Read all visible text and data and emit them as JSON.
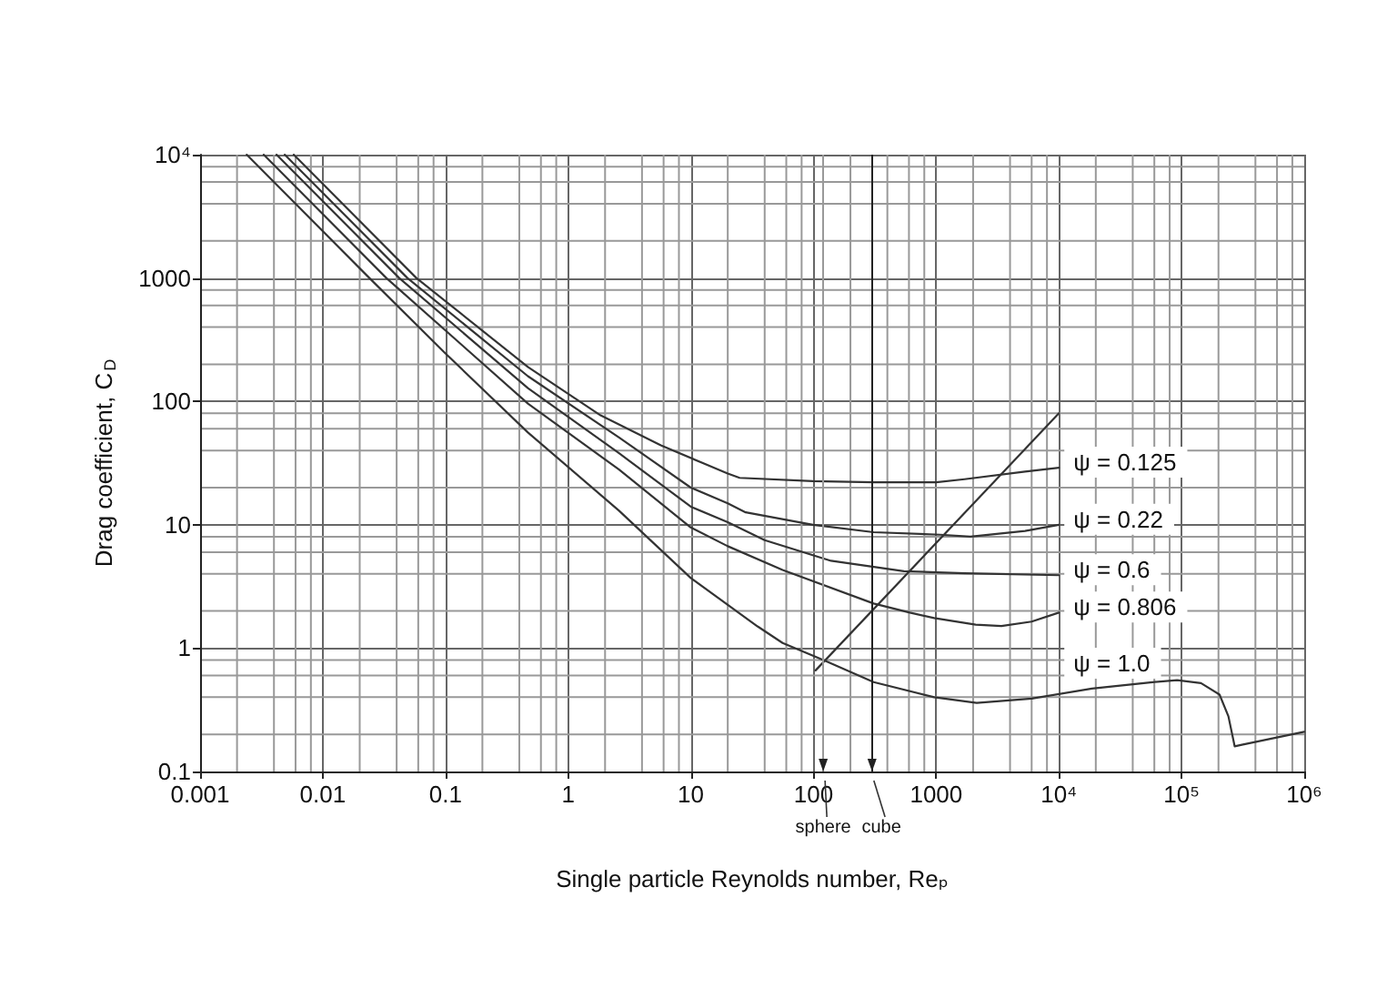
{
  "chart_data": {
    "type": "line",
    "xlabel": "Single particle Reynolds number, Reₚ",
    "ylabel": "Drag coefficient, C$_{D}$",
    "log": "xy",
    "grid": true,
    "xlim": [
      0.001,
      1000000
    ],
    "ylim": [
      0.1,
      10000
    ],
    "xticks": [
      0.001,
      {
        "value": 0.002,
        "label": null
      },
      {
        "value": 0.004,
        "label": null
      },
      {
        "value": 0.006,
        "label": null
      },
      {
        "value": 0.008,
        "label": null
      },
      0.01,
      {
        "value": 0.02,
        "label": null
      },
      {
        "value": 0.04,
        "label": null
      },
      {
        "value": 0.06,
        "label": null
      },
      {
        "value": 0.08,
        "label": null
      },
      0.1,
      {
        "value": 0.2,
        "label": null
      },
      {
        "value": 0.4,
        "label": null
      },
      {
        "value": 0.6,
        "label": null
      },
      {
        "value": 0.8,
        "label": null
      },
      1,
      {
        "value": 2,
        "label": null
      },
      {
        "value": 4,
        "label": null
      },
      {
        "value": 6,
        "label": null
      },
      {
        "value": 8,
        "label": null
      },
      10,
      {
        "value": 20,
        "label": null
      },
      {
        "value": 40,
        "label": null
      },
      {
        "value": 60,
        "label": null
      },
      {
        "value": 80,
        "label": null
      },
      100,
      {
        "value": 200,
        "label": null
      },
      {
        "value": 400,
        "label": null
      },
      {
        "value": 600,
        "label": null
      },
      {
        "value": 800,
        "label": null
      },
      1000,
      {
        "value": 2000,
        "label": null
      },
      {
        "value": 4000,
        "label": null
      },
      {
        "value": 6000,
        "label": null
      },
      {
        "value": 8000,
        "label": null
      },
      {
        "value": 10000,
        "label": "10⁴"
      },
      {
        "value": 20000,
        "label": null
      },
      {
        "value": 40000,
        "label": null
      },
      {
        "value": 60000,
        "label": null
      },
      {
        "value": 80000,
        "label": null
      },
      {
        "value": 100000,
        "label": "10⁵"
      },
      {
        "value": 200000,
        "label": null
      },
      {
        "value": 400000,
        "label": null
      },
      {
        "value": 600000,
        "label": null
      },
      {
        "value": 800000,
        "label": null
      },
      {
        "value": 1000000,
        "label": "10⁶"
      }
    ],
    "yticks": [
      0.1,
      {
        "value": 0.2,
        "label": null
      },
      {
        "value": 0.4,
        "label": null
      },
      {
        "value": 0.6,
        "label": null
      },
      {
        "value": 0.8,
        "label": null
      },
      1,
      {
        "value": 2,
        "label": null
      },
      {
        "value": 4,
        "label": null
      },
      {
        "value": 6,
        "label": null
      },
      {
        "value": 8,
        "label": null
      },
      10,
      {
        "value": 20,
        "label": null
      },
      {
        "value": 40,
        "label": null
      },
      {
        "value": 60,
        "label": null
      },
      {
        "value": 80,
        "label": null
      },
      100,
      {
        "value": 200,
        "label": null
      },
      {
        "value": 400,
        "label": null
      },
      {
        "value": 600,
        "label": null
      },
      {
        "value": 800,
        "label": null
      },
      1000,
      {
        "value": 2000,
        "label": null
      },
      {
        "value": 4000,
        "label": null
      },
      {
        "value": 6000,
        "label": null
      },
      {
        "value": 8000,
        "label": null
      },
      {
        "value": 10000,
        "label": "10⁴"
      }
    ],
    "series": [
      {
        "name": "ψ = 0.125",
        "color": "#333333",
        "x": [
          0.0058,
          0.058,
          0.47,
          1.84,
          5.7,
          20,
          25,
          99,
          309,
          1000,
          1700,
          5300,
          10000
        ],
        "values": [
          10000,
          1000,
          190,
          77,
          44,
          26,
          24,
          22.6,
          22.1,
          22.1,
          23.4,
          27,
          29
        ]
      },
      {
        "name": "ψ = 0.22",
        "color": "#333333",
        "x": [
          0.0049,
          0.049,
          0.47,
          2.6,
          10,
          20,
          28,
          99,
          309,
          1080,
          1900,
          5300,
          10000
        ],
        "values": [
          10000,
          1000,
          160,
          51,
          20,
          14.9,
          12.6,
          10,
          8.7,
          8.3,
          8,
          8.9,
          10
        ]
      },
      {
        "name": "ψ = 0.6",
        "color": "#333333",
        "x": [
          0.0042,
          0.042,
          0.47,
          2.6,
          10,
          20,
          40,
          139,
          546,
          1700,
          10000
        ],
        "values": [
          10000,
          1000,
          128,
          38,
          14,
          10.5,
          7.5,
          5.1,
          4.2,
          4.05,
          3.9
        ]
      },
      {
        "name": "ψ = 0.806",
        "color": "#333333",
        "x": [
          0.0033,
          0.033,
          0.47,
          2.6,
          10,
          20,
          56,
          309,
          610,
          964,
          2100,
          3400,
          6000,
          10000
        ],
        "values": [
          10000,
          1000,
          96,
          28,
          9.5,
          6.7,
          4.3,
          2.3,
          1.94,
          1.75,
          1.55,
          1.51,
          1.64,
          1.94
        ]
      },
      {
        "name": "ψ = 1.0",
        "color": "#333333",
        "x": [
          0.0024,
          0.024,
          0.1,
          0.47,
          2.6,
          10,
          35,
          56,
          124,
          309,
          964,
          2140,
          6000,
          18600,
          58000,
          92000,
          144000,
          204000,
          241000,
          271000,
          304000,
          1000000
        ],
        "values": [
          10000,
          1000,
          245,
          56,
          13,
          3.7,
          1.5,
          1.1,
          0.79,
          0.53,
          0.4,
          0.36,
          0.39,
          0.47,
          0.53,
          0.55,
          0.52,
          0.42,
          0.28,
          0.16,
          0.164,
          0.21
        ]
      },
      {
        "color": "#333333",
        "x": [
          104,
          10000
        ],
        "values": [
          0.66,
          80
        ]
      }
    ],
    "ref_lines": [
      {
        "axis": "x",
        "value": 120,
        "label": "sphere",
        "color": "#999999"
      },
      {
        "axis": "x",
        "value": 300,
        "label": "cube",
        "color": "#222222"
      }
    ]
  }
}
